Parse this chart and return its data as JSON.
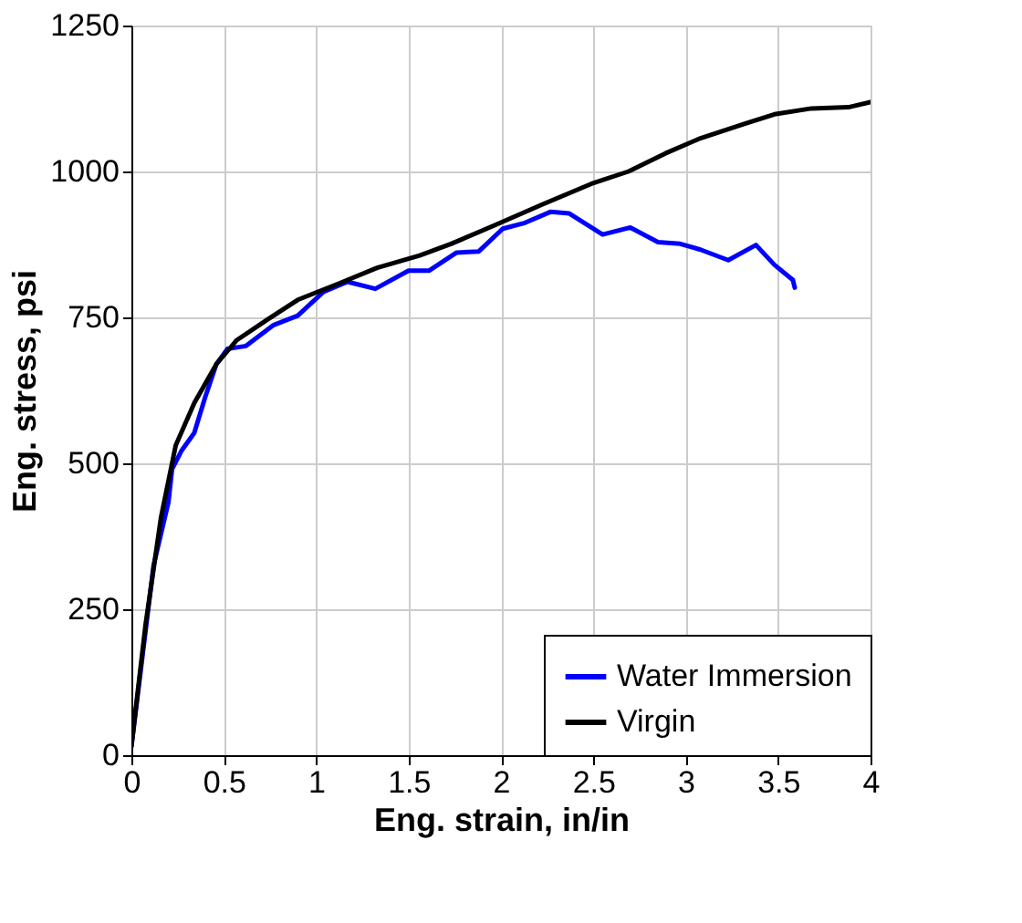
{
  "chart_data": {
    "type": "line",
    "xlabel": "Eng. strain, in/in",
    "ylabel": "Eng. stress, psi",
    "xlim": [
      0,
      4
    ],
    "ylim": [
      0,
      1250
    ],
    "xticks": [
      0,
      0.5,
      1,
      1.5,
      2,
      2.5,
      3,
      3.5,
      4
    ],
    "yticks": [
      0,
      250,
      500,
      750,
      1000,
      1250
    ],
    "grid": true,
    "legend": "bottom right",
    "marker": "none",
    "line_style": "solid",
    "series": [
      {
        "name": "Water Immersion",
        "color": "#0000ff",
        "x": [
          0,
          0.06,
          0.12,
          0.2,
          0.22,
          0.27,
          0.34,
          0.4,
          0.46,
          0.52,
          0.62,
          0.77,
          0.9,
          1.04,
          1.17,
          1.32,
          1.5,
          1.61,
          1.76,
          1.88,
          2.01,
          2.13,
          2.27,
          2.37,
          2.55,
          2.7,
          2.85,
          2.97,
          3.08,
          3.23,
          3.38,
          3.48,
          3.58,
          3.59
        ],
        "values": [
          15,
          170,
          325,
          433,
          490,
          521,
          552,
          614,
          670,
          696,
          701,
          737,
          753,
          794,
          811,
          799,
          830,
          830,
          861,
          863,
          902,
          912,
          931,
          928,
          892,
          904,
          879,
          876,
          866,
          848,
          874,
          840,
          814,
          801
        ]
      },
      {
        "name": "Virgin",
        "color": "#000000",
        "x": [
          0,
          0.076,
          0.16,
          0.24,
          0.34,
          0.46,
          0.57,
          0.74,
          0.9,
          1.13,
          1.33,
          1.56,
          1.73,
          1.96,
          2.22,
          2.49,
          2.69,
          2.89,
          3.08,
          3.32,
          3.48,
          3.68,
          3.88,
          4.0
        ],
        "values": [
          15,
          222,
          407,
          531,
          603,
          670,
          711,
          747,
          780,
          809,
          835,
          856,
          876,
          907,
          943,
          979,
          1000,
          1031,
          1057,
          1082,
          1098,
          1108,
          1110,
          1119
        ]
      }
    ]
  }
}
